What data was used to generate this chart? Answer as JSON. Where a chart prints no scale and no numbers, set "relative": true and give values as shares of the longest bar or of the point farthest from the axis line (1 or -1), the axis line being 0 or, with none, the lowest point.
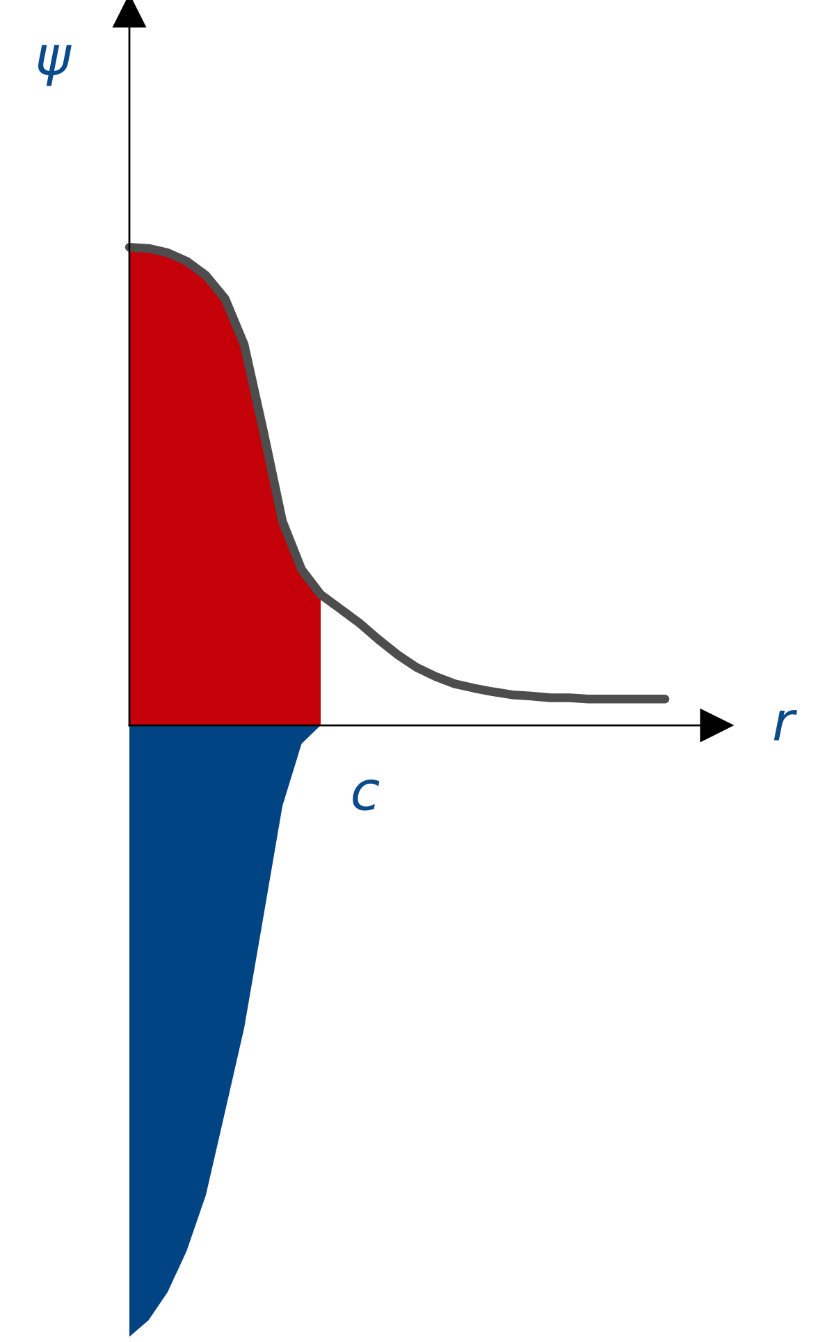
{
  "chart_data": {
    "type": "area",
    "relative": true,
    "xlabel": "r",
    "ylabel": "ψ",
    "annotations": [
      "c"
    ],
    "legend": false,
    "marker": "none",
    "categories": [
      null,
      null,
      null,
      null,
      null,
      null,
      null,
      null,
      null,
      null,
      null,
      null,
      null,
      null,
      null,
      null,
      null,
      null,
      null,
      null,
      null,
      null,
      null,
      null,
      null,
      null,
      null,
      null,
      null
    ],
    "series": [
      {
        "color": "#c40009",
        "values": [
          0.782,
          0.78,
          0.773,
          0.759,
          0.736,
          0.698,
          0.623,
          0.482,
          0.334,
          0.255,
          0.214,
          null,
          null,
          null,
          null,
          null,
          null,
          null,
          null,
          null,
          null,
          null,
          null,
          null,
          null,
          null,
          null,
          null,
          null
        ]
      },
      {
        "color": "#004483",
        "values": [
          -1,
          -0.973,
          -0.927,
          -0.859,
          -0.768,
          -0.632,
          -0.495,
          -0.314,
          -0.132,
          -0.03,
          0,
          null,
          null,
          null,
          null,
          null,
          null,
          null,
          null,
          null,
          null,
          null,
          null,
          null,
          null,
          null,
          null,
          null,
          null
        ]
      },
      {
        "type": "line",
        "color": "#4d4d4d",
        "line_style": "solid",
        "values": [
          0.782,
          0.78,
          0.773,
          0.759,
          0.736,
          0.698,
          0.623,
          0.482,
          0.334,
          0.255,
          0.214,
          0.191,
          0.168,
          0.141,
          0.116,
          0.095,
          0.08,
          0.068,
          0.061,
          0.055,
          0.05,
          0.048,
          0.045,
          0.045,
          0.043,
          0.043,
          0.043,
          0.043,
          0.043
        ]
      }
    ]
  }
}
